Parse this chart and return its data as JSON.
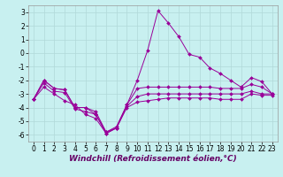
{
  "background_color": "#c8f0f0",
  "grid_color": "#b0d8d8",
  "line_color": "#990099",
  "x": [
    0,
    1,
    2,
    3,
    4,
    5,
    6,
    7,
    8,
    9,
    10,
    11,
    12,
    13,
    14,
    15,
    16,
    17,
    18,
    19,
    20,
    21,
    22,
    23
  ],
  "line1": [
    -3.4,
    -2.0,
    -2.6,
    -2.7,
    -4.0,
    -4.0,
    -4.5,
    -5.8,
    -5.5,
    -3.8,
    -2.0,
    0.2,
    3.1,
    2.2,
    1.2,
    -0.1,
    -0.3,
    -1.1,
    -1.5,
    -2.0,
    -2.5,
    -1.8,
    -2.1,
    -3.0
  ],
  "line2": [
    -3.4,
    -2.0,
    -2.6,
    -2.7,
    -4.0,
    -4.0,
    -4.3,
    -5.8,
    -5.4,
    -3.8,
    -2.6,
    -2.5,
    -2.5,
    -2.5,
    -2.5,
    -2.5,
    -2.5,
    -2.5,
    -2.6,
    -2.6,
    -2.6,
    -2.3,
    -2.5,
    -3.0
  ],
  "line3": [
    -3.4,
    -2.2,
    -2.8,
    -2.9,
    -4.1,
    -4.3,
    -4.5,
    -5.9,
    -5.5,
    -3.9,
    -3.2,
    -3.0,
    -3.0,
    -3.0,
    -3.0,
    -3.0,
    -3.0,
    -3.0,
    -3.0,
    -3.0,
    -3.0,
    -2.8,
    -3.0,
    -3.0
  ],
  "line4": [
    -3.4,
    -2.5,
    -3.0,
    -3.5,
    -3.8,
    -4.5,
    -4.8,
    -5.9,
    -5.5,
    -4.0,
    -3.6,
    -3.5,
    -3.4,
    -3.3,
    -3.3,
    -3.3,
    -3.3,
    -3.3,
    -3.4,
    -3.4,
    -3.4,
    -3.0,
    -3.1,
    -3.1
  ],
  "xlabel": "Windchill (Refroidissement éolien,°C)",
  "ylim": [
    -6.5,
    3.5
  ],
  "yticks": [
    -6,
    -5,
    -4,
    -3,
    -2,
    -1,
    0,
    1,
    2,
    3
  ],
  "xticks": [
    0,
    1,
    2,
    3,
    4,
    5,
    6,
    7,
    8,
    9,
    10,
    11,
    12,
    13,
    14,
    15,
    16,
    17,
    18,
    19,
    20,
    21,
    22,
    23
  ],
  "xlabel_color": "#660066",
  "xlabel_fontsize": 6.5,
  "tick_fontsize": 5.5,
  "marker": "D",
  "markersize": 2.0,
  "linewidth": 0.7
}
